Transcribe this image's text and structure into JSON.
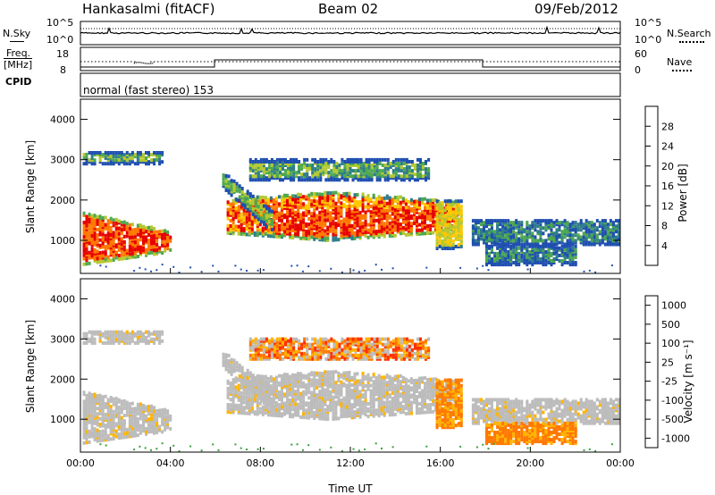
{
  "header": {
    "station": "Hankasalmi (fitACF)",
    "beam": "Beam 02",
    "date": "09/Feb/2012"
  },
  "top_panel": {
    "left_label": "N.Sky",
    "right_label": "N.Search",
    "left_ticks": [
      "10^5",
      "10^0"
    ],
    "right_ticks": [
      "10^5",
      "10^0"
    ]
  },
  "freq_panel": {
    "left_label_1": "Freq.",
    "left_label_2": "[MHz]",
    "right_label": "Nave",
    "left_ticks": [
      "18",
      "8"
    ],
    "right_ticks": [
      "60",
      "0"
    ]
  },
  "cpid_panel": {
    "label": "CPID",
    "text": "normal (fast stereo) 153"
  },
  "chart_data": [
    {
      "type": "heatmap",
      "name": "power",
      "ylabel": "Slant Range [km]",
      "ylim": [
        180,
        4500
      ],
      "yticks": [
        "1000",
        "2000",
        "3000",
        "4000"
      ],
      "ytick_values": [
        1000,
        2000,
        3000,
        4000
      ],
      "colorbar": {
        "label": "Power [dB]",
        "range": [
          0,
          32
        ],
        "tick_labels": [
          "4",
          "8",
          "12",
          "16",
          "20",
          "24",
          "28"
        ],
        "tick_values": [
          4,
          8,
          12,
          16,
          20,
          24,
          28
        ],
        "colors": [
          "#0000ee",
          "#1f4fb0",
          "#2f7d8a",
          "#4ea84e",
          "#b4c832",
          "#ffc800",
          "#ff7800",
          "#e60000"
        ]
      }
    },
    {
      "type": "heatmap",
      "name": "velocity",
      "ylabel": "Slant Range [km]",
      "ylim": [
        180,
        4500
      ],
      "yticks": [
        "1000",
        "2000",
        "3000",
        "4000"
      ],
      "ytick_values": [
        1000,
        2000,
        3000,
        4000
      ],
      "colorbar": {
        "label": "Velocity [m s⁻¹]",
        "tick_labels": [
          "1000",
          "500",
          "100",
          "25",
          "-25",
          "-100",
          "-500",
          "-1000"
        ],
        "colors": [
          "#2030c0",
          "#2a7a8a",
          "#3aa03a",
          "#bcbcbc",
          "#ffb400",
          "#ff7800",
          "#ff3000",
          "#e00000"
        ]
      }
    }
  ],
  "x_axis": {
    "label": "Time UT",
    "ticks": [
      "00:00",
      "04:00",
      "08:00",
      "12:00",
      "16:00",
      "20:00",
      "00:00"
    ],
    "tick_hours": [
      0,
      4,
      8,
      12,
      16,
      20,
      24
    ]
  }
}
